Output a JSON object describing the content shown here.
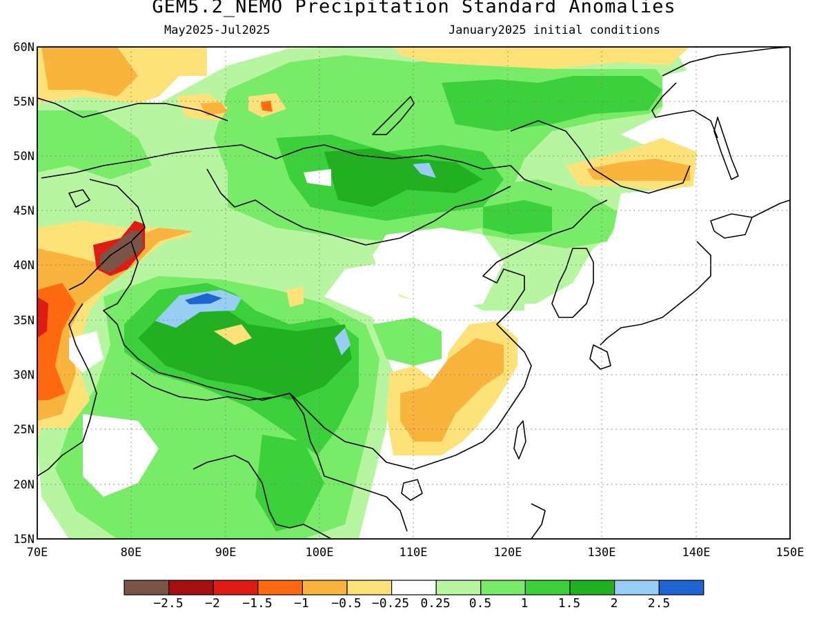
{
  "title": "GEM5.2_NEMO Precipitation Standard Anomalies",
  "period": "May2025-Jul2025",
  "init": "January2025 initial conditions",
  "map": {
    "lat_labels": [
      "60N",
      "55N",
      "50N",
      "45N",
      "40N",
      "35N",
      "30N",
      "25N",
      "20N",
      "15N"
    ],
    "lon_labels": [
      "70E",
      "80E",
      "90E",
      "100E",
      "110E",
      "120E",
      "130E",
      "140E",
      "150E"
    ],
    "extent": {
      "lon_min": 70,
      "lon_max": 150,
      "lat_min": 15,
      "lat_max": 60
    },
    "gridlines": "dotted"
  },
  "colorbar": {
    "colors": [
      "#7a5547",
      "#a50f0f",
      "#de1c14",
      "#ff6a10",
      "#f8b43c",
      "#fce278",
      "#ffffff",
      "#b8f5a0",
      "#78eb68",
      "#3cd03c",
      "#22b022",
      "#96cef6",
      "#1e64d2"
    ],
    "labels": [
      "-2.5",
      "-2",
      "-1.5",
      "-1",
      "-0.5",
      "-0.25",
      "0.25",
      "0.5",
      "1",
      "1.5",
      "2",
      "2.5"
    ]
  },
  "palette": {
    "light_green": "#b8f5a0",
    "green": "#78eb68",
    "mid_green": "#3cd03c",
    "dark_green": "#22b022",
    "light_blue": "#96cef6",
    "blue": "#1e64d2",
    "light_yellow": "#fce278",
    "orange_light": "#f8b43c",
    "orange": "#ff6a10",
    "red": "#de1c14",
    "dark_red": "#a50f0f",
    "brown": "#7a5547"
  }
}
